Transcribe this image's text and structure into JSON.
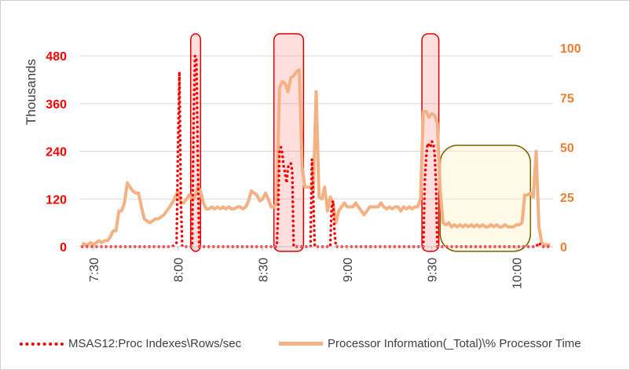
{
  "chart_data": {
    "type": "line",
    "ylabel": "Thousands",
    "x_ticks": [
      "7:30",
      "8:00",
      "8:30",
      "9:00",
      "9:30",
      "10:00"
    ],
    "y_left": {
      "ticks": [
        "0",
        "120",
        "240",
        "360",
        "480"
      ],
      "range": [
        0,
        500
      ],
      "color": "#ff0000"
    },
    "y_right": {
      "ticks": [
        "0",
        "25",
        "50",
        "75",
        "100"
      ],
      "range": [
        0,
        100
      ],
      "color": "#ed7d31"
    },
    "x_range_minutes": [
      445,
      613
    ],
    "series": [
      {
        "name": "MSAS12:Proc Indexes\\Rows/sec",
        "axis": "left",
        "color": "#ff0000",
        "style": "dotted",
        "points": [
          [
            446,
            0
          ],
          [
            478,
            0
          ],
          [
            479.5,
            10
          ],
          [
            480,
            250
          ],
          [
            480.5,
            440
          ],
          [
            481,
            120
          ],
          [
            481.5,
            0
          ],
          [
            485,
            0
          ],
          [
            485.5,
            300
          ],
          [
            486,
            480
          ],
          [
            486.5,
            475
          ],
          [
            487,
            220
          ],
          [
            487.5,
            0
          ],
          [
            515,
            0
          ],
          [
            515.5,
            80
          ],
          [
            516,
            240
          ],
          [
            516.5,
            250
          ],
          [
            517,
            235
          ],
          [
            517.5,
            200
          ],
          [
            518,
            185
          ],
          [
            518.5,
            160
          ],
          [
            519,
            200
          ],
          [
            519.5,
            205
          ],
          [
            520,
            210
          ],
          [
            520.5,
            190
          ],
          [
            521,
            0
          ],
          [
            527,
            0
          ],
          [
            527.5,
            220
          ],
          [
            528,
            120
          ],
          [
            528.5,
            0
          ],
          [
            534,
            0
          ],
          [
            534.5,
            100
          ],
          [
            535,
            115
          ],
          [
            535.5,
            40
          ],
          [
            536,
            0
          ],
          [
            567,
            0
          ],
          [
            567.5,
            160
          ],
          [
            568,
            225
          ],
          [
            568.5,
            260
          ],
          [
            569,
            255
          ],
          [
            569.5,
            250
          ],
          [
            570,
            265
          ],
          [
            570.5,
            260
          ],
          [
            571,
            235
          ],
          [
            571.5,
            160
          ],
          [
            572,
            0
          ],
          [
            607,
            0
          ],
          [
            608,
            10
          ],
          [
            609,
            0
          ],
          [
            612,
            0
          ]
        ]
      },
      {
        "name": "Processor Information(_Total)\\% Processor Time",
        "axis": "right",
        "color": "#f4b183",
        "style": "solid",
        "points": [
          [
            446,
            2
          ],
          [
            447,
            1
          ],
          [
            448,
            1
          ],
          [
            449,
            2
          ],
          [
            450,
            1
          ],
          [
            451,
            2
          ],
          [
            452,
            3
          ],
          [
            453,
            2
          ],
          [
            454,
            3
          ],
          [
            455,
            3
          ],
          [
            456,
            5
          ],
          [
            457,
            8
          ],
          [
            458,
            8
          ],
          [
            459,
            18
          ],
          [
            460,
            18
          ],
          [
            461,
            22
          ],
          [
            462,
            32
          ],
          [
            463,
            30
          ],
          [
            464,
            28
          ],
          [
            465,
            27
          ],
          [
            466,
            27
          ],
          [
            467,
            20
          ],
          [
            468,
            14
          ],
          [
            469,
            13
          ],
          [
            470,
            12
          ],
          [
            471,
            13
          ],
          [
            472,
            14
          ],
          [
            473,
            14
          ],
          [
            474,
            15
          ],
          [
            475,
            16
          ],
          [
            476,
            18
          ],
          [
            477,
            20
          ],
          [
            478,
            22
          ],
          [
            479,
            25
          ],
          [
            480,
            28
          ],
          [
            481,
            22
          ],
          [
            482,
            22
          ],
          [
            483,
            24
          ],
          [
            484,
            26
          ],
          [
            485,
            24
          ],
          [
            486,
            25
          ],
          [
            487,
            30
          ],
          [
            488,
            28
          ],
          [
            489,
            22
          ],
          [
            490,
            19
          ],
          [
            491,
            19
          ],
          [
            492,
            20
          ],
          [
            493,
            19
          ],
          [
            494,
            20
          ],
          [
            495,
            19
          ],
          [
            496,
            20
          ],
          [
            497,
            19
          ],
          [
            498,
            20
          ],
          [
            499,
            19
          ],
          [
            500,
            19
          ],
          [
            501,
            20
          ],
          [
            502,
            20
          ],
          [
            503,
            19
          ],
          [
            504,
            20
          ],
          [
            505,
            23
          ],
          [
            506,
            28
          ],
          [
            507,
            27
          ],
          [
            508,
            26
          ],
          [
            509,
            23
          ],
          [
            510,
            24
          ],
          [
            511,
            27
          ],
          [
            512,
            24
          ],
          [
            513,
            20
          ],
          [
            514,
            20
          ],
          [
            515,
            22
          ],
          [
            516,
            80
          ],
          [
            517,
            83
          ],
          [
            518,
            82
          ],
          [
            519,
            78
          ],
          [
            520,
            85
          ],
          [
            521,
            86
          ],
          [
            522,
            88
          ],
          [
            523,
            89
          ],
          [
            524,
            40
          ],
          [
            525,
            30
          ],
          [
            526,
            30
          ],
          [
            527,
            30
          ],
          [
            528,
            28
          ],
          [
            529,
            78
          ],
          [
            530,
            25
          ],
          [
            531,
            24
          ],
          [
            532,
            30
          ],
          [
            533,
            18
          ],
          [
            534,
            25
          ],
          [
            535,
            22
          ],
          [
            536,
            12
          ],
          [
            537,
            18
          ],
          [
            538,
            20
          ],
          [
            539,
            22
          ],
          [
            540,
            20
          ],
          [
            541,
            20
          ],
          [
            542,
            20
          ],
          [
            543,
            22
          ],
          [
            544,
            20
          ],
          [
            545,
            18
          ],
          [
            546,
            16
          ],
          [
            547,
            18
          ],
          [
            548,
            20
          ],
          [
            549,
            20
          ],
          [
            550,
            20
          ],
          [
            551,
            20
          ],
          [
            552,
            22
          ],
          [
            553,
            20
          ],
          [
            554,
            19
          ],
          [
            555,
            20
          ],
          [
            556,
            19
          ],
          [
            557,
            20
          ],
          [
            558,
            20
          ],
          [
            559,
            18
          ],
          [
            560,
            20
          ],
          [
            561,
            19
          ],
          [
            562,
            20
          ],
          [
            563,
            19
          ],
          [
            564,
            20
          ],
          [
            565,
            20
          ],
          [
            566,
            24
          ],
          [
            567,
            68
          ],
          [
            568,
            68
          ],
          [
            569,
            65
          ],
          [
            570,
            67
          ],
          [
            571,
            66
          ],
          [
            572,
            62
          ],
          [
            573,
            28
          ],
          [
            574,
            12
          ],
          [
            575,
            11
          ],
          [
            576,
            12
          ],
          [
            577,
            10
          ],
          [
            578,
            11
          ],
          [
            579,
            10
          ],
          [
            580,
            11
          ],
          [
            581,
            10
          ],
          [
            582,
            11
          ],
          [
            583,
            10
          ],
          [
            584,
            11
          ],
          [
            585,
            10
          ],
          [
            586,
            11
          ],
          [
            587,
            10
          ],
          [
            588,
            11
          ],
          [
            589,
            10
          ],
          [
            590,
            10
          ],
          [
            591,
            11
          ],
          [
            592,
            10
          ],
          [
            593,
            11
          ],
          [
            594,
            10
          ],
          [
            595,
            10
          ],
          [
            596,
            11
          ],
          [
            597,
            10
          ],
          [
            598,
            10
          ],
          [
            599,
            10
          ],
          [
            600,
            11
          ],
          [
            601,
            11
          ],
          [
            602,
            12
          ],
          [
            603,
            26
          ],
          [
            604,
            26
          ],
          [
            605,
            27
          ],
          [
            606,
            25
          ],
          [
            607,
            48
          ],
          [
            608,
            10
          ],
          [
            609,
            2
          ],
          [
            610,
            1
          ],
          [
            611,
            1
          ],
          [
            612,
            1
          ]
        ]
      }
    ],
    "highlight_regions": [
      {
        "x_range": [
          484.5,
          488
        ],
        "style": "red"
      },
      {
        "x_range": [
          514,
          524.5
        ],
        "style": "red"
      },
      {
        "x_range": [
          566.5,
          572.5
        ],
        "style": "red"
      },
      {
        "x_range": [
          573,
          605
        ],
        "style": "tan"
      }
    ],
    "grid": true,
    "legend_position": "bottom"
  }
}
